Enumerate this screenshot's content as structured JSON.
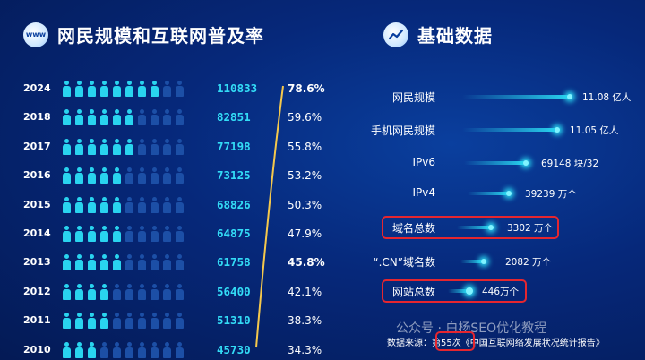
{
  "left_header": {
    "icon_text": "www",
    "title": "网民规模和互联网普及率"
  },
  "right_header": {
    "title": "基础数据"
  },
  "left_rows": [
    {
      "year": "2024",
      "number": "110833",
      "percent": "78.6%",
      "filled": 8
    },
    {
      "year": "2018",
      "number": "82851",
      "percent": "59.6%",
      "filled": 6
    },
    {
      "year": "2017",
      "number": "77198",
      "percent": "55.8%",
      "filled": 6
    },
    {
      "year": "2016",
      "number": "73125",
      "percent": "53.2%",
      "filled": 5
    },
    {
      "year": "2015",
      "number": "68826",
      "percent": "50.3%",
      "filled": 5
    },
    {
      "year": "2014",
      "number": "64875",
      "percent": "47.9%",
      "filled": 5
    },
    {
      "year": "2013",
      "number": "61758",
      "percent": "45.8%",
      "filled": 5
    },
    {
      "year": "2012",
      "number": "56400",
      "percent": "42.1%",
      "filled": 4
    },
    {
      "year": "2011",
      "number": "51310",
      "percent": "38.3%",
      "filled": 4
    },
    {
      "year": "2010",
      "number": "45730",
      "percent": "34.3%",
      "filled": 3
    }
  ],
  "right_rows": [
    {
      "label": "网民规模",
      "value": "11.08 亿人",
      "highlight": false
    },
    {
      "label": "手机网民规模",
      "value": "11.05 亿人",
      "highlight": false
    },
    {
      "label": "IPv6",
      "value": "69148 块/32",
      "highlight": false
    },
    {
      "label": "IPv4",
      "value": "39239 万个",
      "highlight": false
    },
    {
      "label": "域名总数",
      "value": "3302 万个",
      "highlight": true
    },
    {
      "label": "“.CN”域名数",
      "value": "2082 万个",
      "highlight": false
    },
    {
      "label": "网站总数",
      "value": "446万个",
      "highlight": true
    }
  ],
  "footer": {
    "text": "数据来源：第55次《中国互联网络发展状况统计报告》"
  },
  "watermark": {
    "text": "公众号 · 白杨SEO优化教程"
  },
  "colors": {
    "accent": "#29d4ef",
    "highlight": "#e5262f",
    "curve": "#f5c84c"
  },
  "chart_data": [
    {
      "type": "bar",
      "title": "网民规模和互联网普及率",
      "categories": [
        "2024",
        "2018",
        "2017",
        "2016",
        "2015",
        "2014",
        "2013",
        "2012",
        "2011",
        "2010"
      ],
      "series": [
        {
          "values": [
            110833,
            82851,
            77198,
            73125,
            68826,
            64875,
            61758,
            56400,
            51310,
            45730
          ]
        },
        {
          "values": [
            78.6,
            59.6,
            55.8,
            53.2,
            50.3,
            47.9,
            45.8,
            42.1,
            38.3,
            34.3
          ]
        }
      ]
    },
    {
      "type": "bar",
      "title": "基础数据",
      "categories": [
        "网民规模",
        "手机网民规模",
        "IPv6",
        "IPv4",
        "域名总数",
        "“.CN”域名数",
        "网站总数"
      ],
      "values": [
        11.08,
        11.05,
        69148,
        39239,
        3302,
        2082,
        446
      ]
    }
  ]
}
